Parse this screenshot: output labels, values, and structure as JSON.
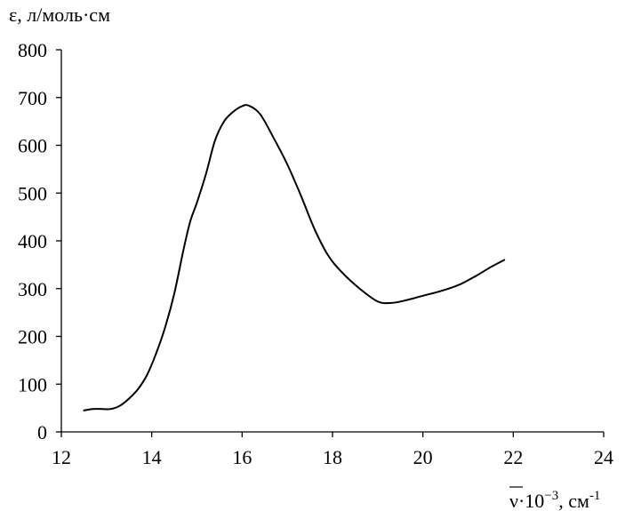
{
  "chart_data": {
    "type": "line",
    "ylabel": "ε, л/моль·см",
    "xlabel": {
      "symbol": "ν",
      "multiplier": "·10",
      "exponent": "−3",
      "unit": ", см",
      "unit_exponent": "-1"
    },
    "xlim": [
      12,
      24
    ],
    "ylim": [
      0,
      800
    ],
    "xticks": [
      "12",
      "14",
      "16",
      "18",
      "20",
      "22",
      "24"
    ],
    "yticks": [
      "0",
      "100",
      "200",
      "300",
      "400",
      "500",
      "600",
      "700",
      "800"
    ],
    "grid": false,
    "legend": "none",
    "colors": {
      "line": "#000000",
      "axis": "#000000"
    },
    "series": [
      {
        "x": [
          12.5,
          12.7,
          12.9,
          13.1,
          13.3,
          13.5,
          13.7,
          13.9,
          14.1,
          14.3,
          14.5,
          14.7,
          14.85,
          15.0,
          15.2,
          15.4,
          15.6,
          15.8,
          16.0,
          16.15,
          16.4,
          16.7,
          17.0,
          17.3,
          17.6,
          17.9,
          18.2,
          18.6,
          19.0,
          19.3,
          19.6,
          20.0,
          20.4,
          20.8,
          21.2,
          21.5,
          21.8
        ],
        "y": [
          45,
          48,
          48,
          48,
          55,
          70,
          90,
          120,
          165,
          220,
          290,
          380,
          440,
          480,
          540,
          610,
          650,
          670,
          682,
          683,
          665,
          615,
          560,
          495,
          425,
          370,
          335,
          300,
          273,
          270,
          275,
          285,
          295,
          308,
          328,
          345,
          360
        ]
      }
    ]
  }
}
